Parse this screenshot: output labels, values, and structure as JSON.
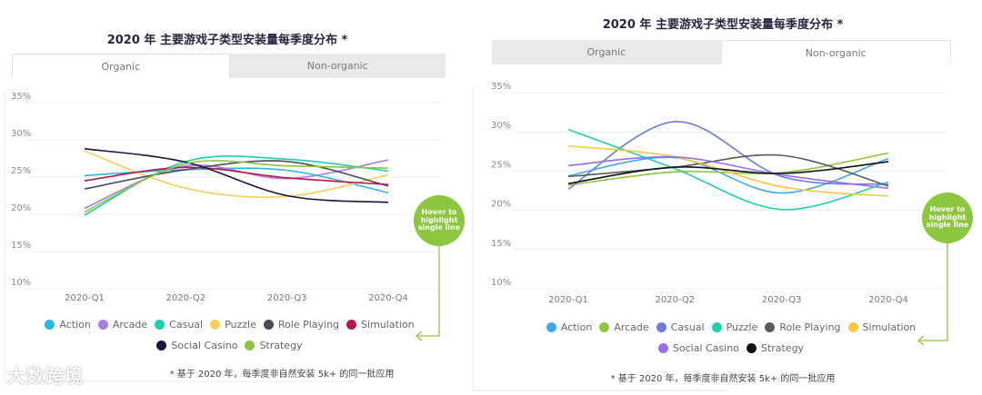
{
  "chart_data": [
    {
      "type": "line",
      "title": "2020 年 主要游戏子类型安装量每季度分布 *",
      "tabs": [
        {
          "label": "Organic",
          "active": true
        },
        {
          "label": "Non-organic",
          "active": false
        }
      ],
      "categories": [
        "2020-Q1",
        "2020-Q2",
        "2020-Q3",
        "2020-Q4"
      ],
      "yticks": [
        "35%",
        "30%",
        "25%",
        "20%",
        "15%",
        "10%"
      ],
      "ylim": [
        10,
        35
      ],
      "grid": true,
      "legend_position": "bottom",
      "series": [
        {
          "name": "Action",
          "color": "#29b6e8",
          "values": [
            25.2,
            26.0,
            25.9,
            22.9
          ]
        },
        {
          "name": "Arcade",
          "color": "#a77be8",
          "values": [
            20.8,
            26.5,
            24.8,
            27.3
          ]
        },
        {
          "name": "Casual",
          "color": "#1fcfa8",
          "values": [
            19.9,
            27.1,
            27.4,
            25.8
          ]
        },
        {
          "name": "Puzzle",
          "color": "#f5cf5a",
          "values": [
            28.5,
            23.5,
            22.4,
            25.3
          ]
        },
        {
          "name": "Role Playing",
          "color": "#4a4a58",
          "values": [
            23.4,
            26.0,
            27.1,
            23.8
          ]
        },
        {
          "name": "Simulation",
          "color": "#b8164a",
          "values": [
            24.5,
            26.3,
            24.9,
            24.0
          ]
        },
        {
          "name": "Social Casino",
          "color": "#1a1440",
          "values": [
            28.8,
            27.0,
            22.5,
            21.6
          ]
        },
        {
          "name": "Strategy",
          "color": "#8dc63f",
          "values": [
            20.3,
            26.8,
            26.5,
            26.2
          ]
        }
      ],
      "footnote": "* 基于 2020 年，每季度非自然安装 5k+ 的同一批应用"
    },
    {
      "type": "line",
      "title": "2020 年 主要游戏子类型安装量每季度分布 *",
      "tabs": [
        {
          "label": "Organic",
          "active": false
        },
        {
          "label": "Non-organic",
          "active": true
        }
      ],
      "categories": [
        "2020-Q1",
        "2020-Q2",
        "2020-Q3",
        "2020-Q4"
      ],
      "yticks": [
        "35%",
        "30%",
        "25%",
        "20%",
        "15%",
        "10%"
      ],
      "ylim": [
        10,
        35
      ],
      "grid": true,
      "legend_position": "bottom",
      "series": [
        {
          "name": "Action",
          "color": "#3fa9ef",
          "values": [
            24.4,
            26.7,
            22.2,
            26.6
          ]
        },
        {
          "name": "Arcade",
          "color": "#8dc63f",
          "values": [
            23.2,
            24.9,
            24.8,
            27.3
          ]
        },
        {
          "name": "Casual",
          "color": "#6f7bd8",
          "values": [
            22.7,
            31.3,
            24.3,
            23.3
          ]
        },
        {
          "name": "Puzzle",
          "color": "#1fd1a8",
          "values": [
            30.3,
            25.3,
            20.1,
            23.6
          ]
        },
        {
          "name": "Role Playing",
          "color": "#5a5a5a",
          "values": [
            24.3,
            25.5,
            27.0,
            23.1
          ]
        },
        {
          "name": "Simulation",
          "color": "#f7c843",
          "values": [
            28.2,
            26.8,
            23.0,
            21.8
          ]
        },
        {
          "name": "Social Casino",
          "color": "#9a6cf0",
          "values": [
            25.7,
            26.8,
            24.5,
            22.8
          ]
        },
        {
          "name": "Strategy",
          "color": "#111111",
          "values": [
            23.4,
            25.5,
            24.7,
            26.2
          ]
        }
      ],
      "footnote": "* 基于 2020 年，每季度非自然安装 5k+ 的同一批应用"
    }
  ],
  "hover_hint": "Hover to highlight single line",
  "watermark": "大数跨境"
}
